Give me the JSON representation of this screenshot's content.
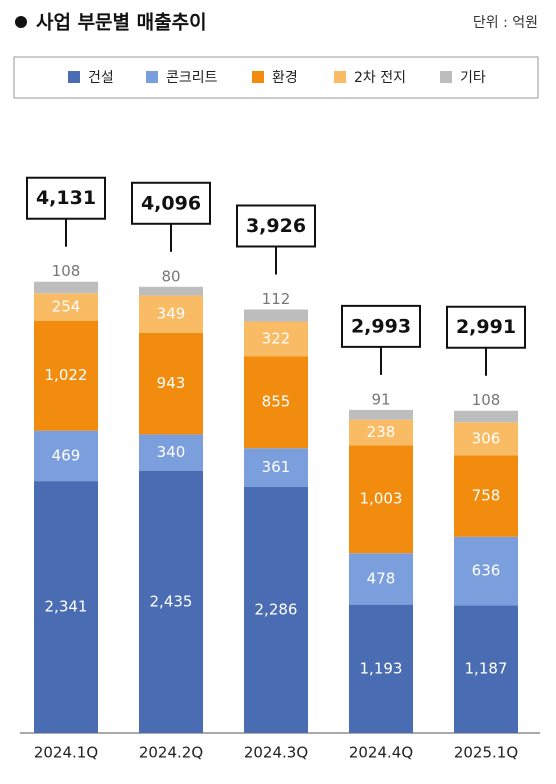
{
  "chart_data": {
    "type": "stacked-bar",
    "title": "사업 부문별 매출추이",
    "unit": "단위 : 억원",
    "categories": [
      "2024.1Q",
      "2024.2Q",
      "2024.3Q",
      "2024.4Q",
      "2025.1Q"
    ],
    "series": [
      {
        "name": "건설",
        "color": "#4a6cb3",
        "values": [
          2341,
          2435,
          2286,
          1193,
          1187
        ],
        "value_labels": [
          "2,341",
          "2,435",
          "2,286",
          "1,193",
          "1,187"
        ]
      },
      {
        "name": "콘크리트",
        "color": "#7b9fdc",
        "values": [
          469,
          340,
          361,
          478,
          636
        ]
      },
      {
        "name": "환경",
        "color": "#f28c0f",
        "values": [
          1022,
          943,
          855,
          1003,
          758
        ],
        "value_labels": [
          "1,022",
          "943",
          "855",
          "1,003",
          "758"
        ]
      },
      {
        "name": "2차 전지",
        "color": "#f9bb63",
        "values": [
          254,
          349,
          322,
          238,
          306
        ]
      },
      {
        "name": "기타",
        "color": "#bdbdbd",
        "values": [
          108,
          80,
          112,
          91,
          108
        ]
      }
    ],
    "totals": {
      "values": [
        4131,
        4096,
        3926,
        2993,
        2991
      ],
      "value_labels": [
        "4,131",
        "4,096",
        "3,926",
        "2,993",
        "2,991"
      ]
    },
    "ylim": [
      0,
      5000
    ],
    "legend": "top"
  }
}
